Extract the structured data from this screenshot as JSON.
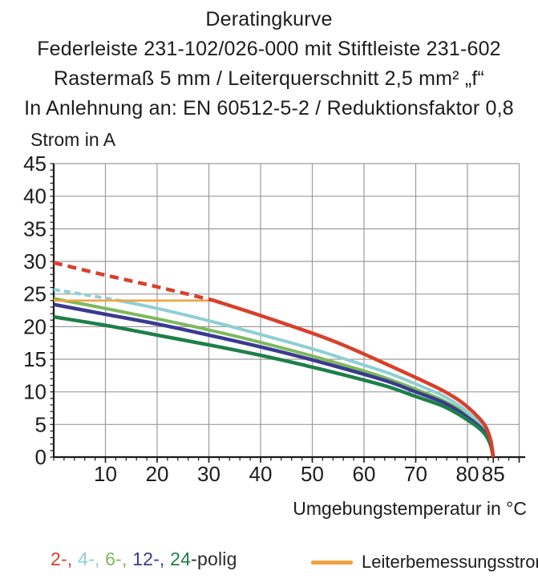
{
  "header": {
    "lines": [
      "Deratingkurve",
      "Federleiste 231-102/026-000 mit Stiftleiste 231-602",
      "Rastermaß 5 mm / Leiterquerschnitt 2,5 mm² „f“",
      "In Anlehnung an: EN 60512-5-2 / Reduktionsfaktor 0,8"
    ]
  },
  "axes": {
    "y_title": "Strom in A",
    "x_title": "Umgebungstemperatur in °C"
  },
  "legend": {
    "pole_parts": [
      {
        "text": "2-, ",
        "color": "#d8402c"
      },
      {
        "text": "4-, ",
        "color": "#8ecfd4"
      },
      {
        "text": "6-, ",
        "color": "#7db95c"
      },
      {
        "text": "12-, ",
        "color": "#3a3a90"
      },
      {
        "text": "24",
        "color": "#1e7f49"
      },
      {
        "text": "-polig",
        "color": "#2b2b2b"
      }
    ],
    "rated_current_label": "Leiterbemessungsstrom",
    "rated_current_color": "#f2a241"
  },
  "colors": {
    "grid": "#9b9b9b",
    "axis": "#1a1a1a",
    "text": "#1c1c1c"
  },
  "chart_data": {
    "type": "line",
    "title": "Deratingkurve",
    "xlabel": "Umgebungstemperatur in °C",
    "ylabel": "Strom in A",
    "xlim": [
      0,
      91
    ],
    "ylim": [
      0,
      45
    ],
    "x_ticks": [
      10,
      20,
      30,
      40,
      50,
      60,
      70,
      80,
      85
    ],
    "y_ticks": [
      0,
      5,
      10,
      15,
      20,
      25,
      30,
      35,
      40,
      45
    ],
    "x_minor_step": 2,
    "y_minor_step": 1,
    "grid": true,
    "rated_current_A": 24,
    "series": [
      {
        "name": "6-polig",
        "color": "#7db95c",
        "width": 4,
        "segments": [
          {
            "dash": false,
            "points": [
              [
                0,
                24.3
              ],
              [
                10,
                22.8
              ],
              [
                20,
                21.2
              ],
              [
                30,
                19.5
              ],
              [
                40,
                17.6
              ],
              [
                50,
                15.5
              ],
              [
                60,
                13.2
              ],
              [
                65,
                11.9
              ],
              [
                70,
                10.4
              ],
              [
                75,
                8.8
              ],
              [
                78,
                7.5
              ],
              [
                80,
                6.4
              ],
              [
                82,
                5.1
              ],
              [
                83.5,
                3.8
              ],
              [
                84.5,
                2.0
              ],
              [
                85,
                0
              ]
            ]
          }
        ]
      },
      {
        "name": "4-polig",
        "color": "#8ecfd4",
        "width": 4,
        "segments": [
          {
            "dash": true,
            "points": [
              [
                0,
                25.7
              ],
              [
                6,
                24.9
              ],
              [
                12,
                24.1
              ]
            ]
          },
          {
            "dash": false,
            "points": [
              [
                12,
                24.1
              ],
              [
                20,
                22.8
              ],
              [
                30,
                20.9
              ],
              [
                40,
                18.8
              ],
              [
                50,
                16.6
              ],
              [
                60,
                14.1
              ],
              [
                65,
                12.8
              ],
              [
                70,
                11.2
              ],
              [
                75,
                9.5
              ],
              [
                78,
                8.1
              ],
              [
                80,
                6.9
              ],
              [
                82,
                5.5
              ],
              [
                83.5,
                4.1
              ],
              [
                84.5,
                2.2
              ],
              [
                85,
                0
              ]
            ]
          }
        ]
      },
      {
        "name": "12-polig",
        "color": "#3a3a90",
        "width": 4.5,
        "segments": [
          {
            "dash": false,
            "points": [
              [
                0,
                23.4
              ],
              [
                10,
                21.9
              ],
              [
                20,
                20.4
              ],
              [
                30,
                18.7
              ],
              [
                40,
                16.9
              ],
              [
                50,
                14.9
              ],
              [
                60,
                12.7
              ],
              [
                65,
                11.5
              ],
              [
                70,
                10.0
              ],
              [
                75,
                8.5
              ],
              [
                78,
                7.2
              ],
              [
                80,
                6.1
              ],
              [
                82,
                4.9
              ],
              [
                83.5,
                3.6
              ],
              [
                84.5,
                1.9
              ],
              [
                85,
                0
              ]
            ]
          }
        ]
      },
      {
        "name": "24-polig",
        "color": "#1e7f49",
        "width": 4.5,
        "segments": [
          {
            "dash": false,
            "points": [
              [
                0,
                21.5
              ],
              [
                10,
                20.2
              ],
              [
                20,
                18.7
              ],
              [
                30,
                17.2
              ],
              [
                40,
                15.6
              ],
              [
                50,
                13.8
              ],
              [
                60,
                11.8
              ],
              [
                65,
                10.7
              ],
              [
                70,
                9.3
              ],
              [
                75,
                7.9
              ],
              [
                78,
                6.7
              ],
              [
                80,
                5.7
              ],
              [
                82,
                4.6
              ],
              [
                83.5,
                3.4
              ],
              [
                84.5,
                1.8
              ],
              [
                85,
                0
              ]
            ]
          }
        ]
      },
      {
        "name": "Leiterbemessungsstrom",
        "color": "#f2a241",
        "width": 2.6,
        "segments": [
          {
            "dash": false,
            "points": [
              [
                0,
                24
              ],
              [
                31,
                24
              ]
            ]
          }
        ]
      },
      {
        "name": "2-polig",
        "color": "#d8402c",
        "width": 4.5,
        "segments": [
          {
            "dash": true,
            "points": [
              [
                0,
                29.8
              ],
              [
                10,
                27.9
              ],
              [
                20,
                26.1
              ],
              [
                30,
                24.2
              ],
              [
                31,
                24.0
              ]
            ]
          },
          {
            "dash": false,
            "points": [
              [
                31,
                24.0
              ],
              [
                40,
                21.7
              ],
              [
                50,
                19.0
              ],
              [
                55,
                17.5
              ],
              [
                60,
                15.8
              ],
              [
                65,
                14.0
              ],
              [
                70,
                12.2
              ],
              [
                75,
                10.3
              ],
              [
                78,
                8.9
              ],
              [
                80,
                7.7
              ],
              [
                82,
                6.2
              ],
              [
                83.5,
                4.7
              ],
              [
                84.5,
                2.6
              ],
              [
                85,
                0
              ]
            ]
          }
        ]
      }
    ]
  }
}
